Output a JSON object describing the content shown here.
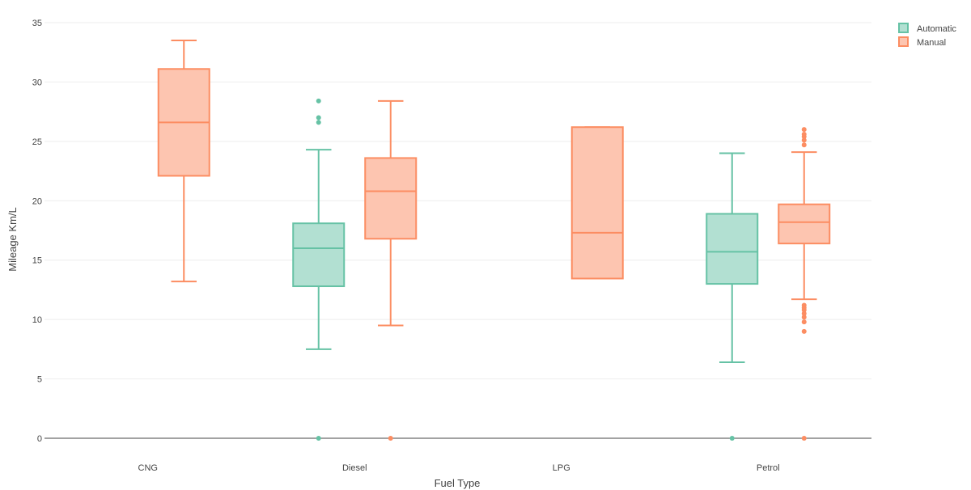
{
  "chart_data": {
    "type": "box",
    "title": "",
    "xlabel": "Fuel Type",
    "ylabel": "Mileage Km/L",
    "ylim": [
      0,
      35
    ],
    "yticks": [
      0,
      5,
      10,
      15,
      20,
      25,
      30,
      35
    ],
    "categories": [
      "CNG",
      "Diesel",
      "LPG",
      "Petrol"
    ],
    "legend_position": "top-right",
    "series": [
      {
        "name": "Automatic",
        "color": "#66c2a5",
        "fill": "#b2e0d2",
        "boxes": [
          {
            "category": "Diesel",
            "q1": 12.8,
            "median": 16.0,
            "q3": 18.1,
            "lower_whisker": 7.5,
            "upper_whisker": 24.3,
            "outliers": [
              0,
              26.6,
              27.0,
              28.4
            ]
          },
          {
            "category": "Petrol",
            "q1": 13.0,
            "median": 15.7,
            "q3": 18.9,
            "lower_whisker": 6.4,
            "upper_whisker": 24.0,
            "outliers": [
              0
            ]
          }
        ]
      },
      {
        "name": "Manual",
        "color": "#fc8d62",
        "fill": "#fdc5b0",
        "boxes": [
          {
            "category": "CNG",
            "q1": 22.1,
            "median": 26.6,
            "q3": 31.1,
            "lower_whisker": 13.2,
            "upper_whisker": 33.5,
            "outliers": []
          },
          {
            "category": "Diesel",
            "q1": 16.8,
            "median": 20.8,
            "q3": 23.6,
            "lower_whisker": 9.5,
            "upper_whisker": 28.4,
            "outliers": [
              0
            ]
          },
          {
            "category": "LPG",
            "q1": 13.45,
            "median": 17.3,
            "q3": 26.2,
            "lower_whisker": 13.45,
            "upper_whisker": 26.2,
            "outliers": []
          },
          {
            "category": "Petrol",
            "q1": 16.4,
            "median": 18.2,
            "q3": 19.7,
            "lower_whisker": 11.7,
            "upper_whisker": 24.1,
            "outliers": [
              0,
              9.0,
              9.8,
              10.2,
              10.5,
              10.8,
              11.0,
              11.2,
              24.7,
              25.1,
              25.4,
              25.6,
              26.0
            ]
          }
        ]
      }
    ]
  }
}
